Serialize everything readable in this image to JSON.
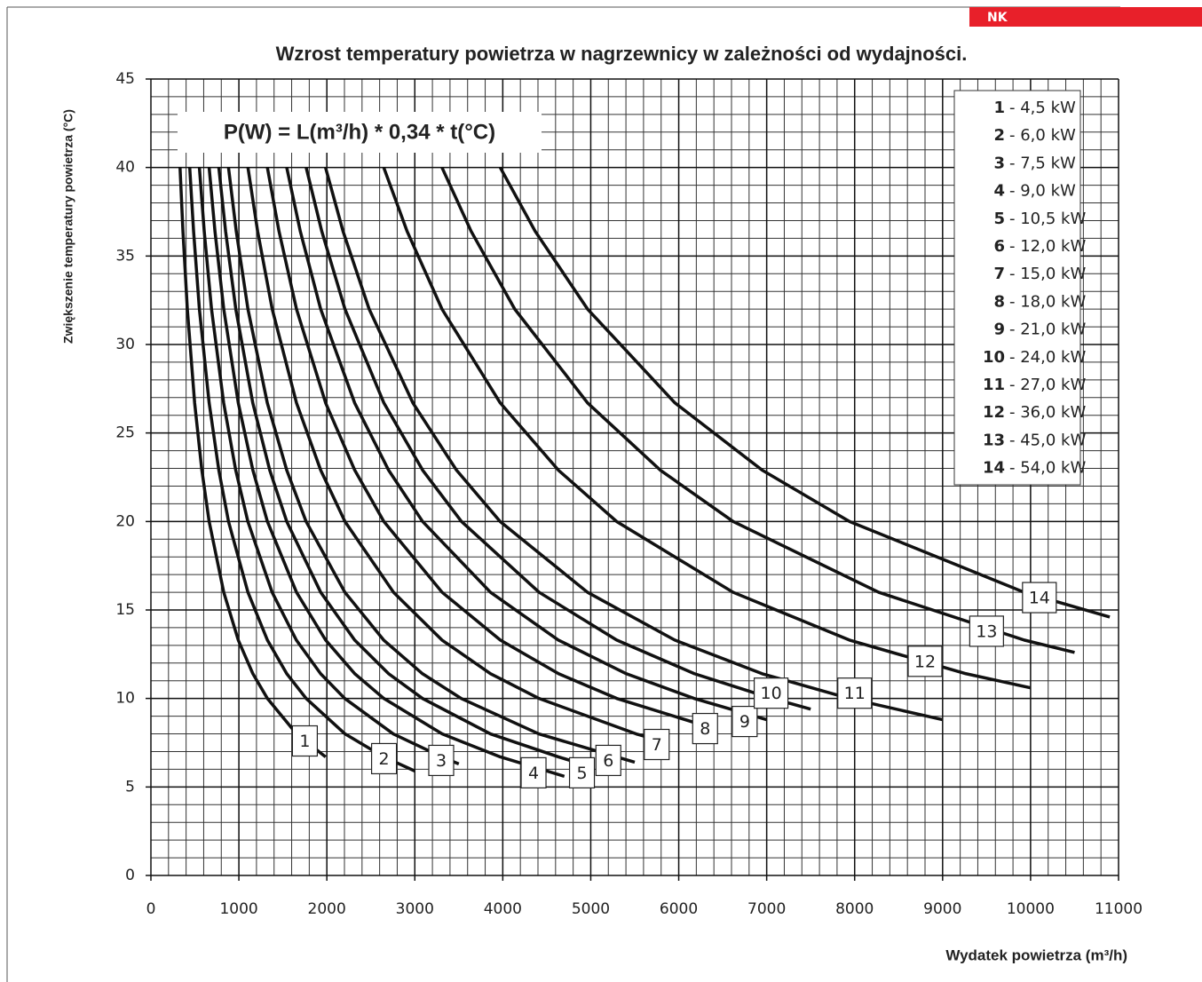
{
  "tag": "NK",
  "chart_data": {
    "type": "line",
    "title": "Wzrost temperatury powietrza w nagrzewnicy w zależności od wydajności.",
    "xlabel": "Wydatek powietrza (m³/h)",
    "ylabel": "Zwiększenie temperatury powietrza  (°C)",
    "formula": "P(W) = L(m³/h) * 0,34 * t(°C)",
    "xlim": [
      0,
      11000
    ],
    "xticks": [
      0,
      1000,
      2000,
      3000,
      4000,
      5000,
      6000,
      7000,
      8000,
      9000,
      10000,
      11000
    ],
    "ylim": [
      0,
      45
    ],
    "yticks": [
      0,
      5,
      10,
      15,
      20,
      25,
      30,
      35,
      40,
      45
    ],
    "grid": true,
    "minor_grid": {
      "x": 200,
      "y": 1
    },
    "color": "#111111",
    "series": [
      {
        "name": "1",
        "label": "- 4,5 kW",
        "label_x": 1750,
        "label_y": 7.6,
        "x": [
          331,
          364,
          414,
          497,
          579,
          662,
          828,
          993,
          1159,
          1324,
          1655,
          1986
        ],
        "values": [
          40,
          36.4,
          32,
          26.7,
          22.9,
          20,
          16,
          13.3,
          11.4,
          10,
          8,
          6.7
        ]
      },
      {
        "name": "2",
        "label": "- 6,0 kW",
        "label_x": 2650,
        "label_y": 6.6,
        "x": [
          441,
          485,
          551,
          662,
          772,
          882,
          1103,
          1324,
          1544,
          1765,
          2206,
          2647,
          3000
        ],
        "values": [
          40,
          36.4,
          32,
          26.7,
          22.9,
          20,
          16,
          13.3,
          11.4,
          10,
          8,
          6.7,
          5.9
        ]
      },
      {
        "name": "3",
        "label": "- 7,5 kW",
        "label_x": 3300,
        "label_y": 6.5,
        "x": [
          551,
          606,
          689,
          827,
          964,
          1102,
          1378,
          1653,
          1929,
          2204,
          2755,
          3306,
          3500
        ],
        "values": [
          40,
          36.4,
          32,
          26.7,
          22.9,
          20,
          16,
          13.3,
          11.4,
          10,
          8,
          6.7,
          6.3
        ]
      },
      {
        "name": "4",
        "label": "- 9,0 kW",
        "label_x": 4350,
        "label_y": 5.8,
        "x": [
          662,
          728,
          828,
          993,
          1159,
          1324,
          1655,
          1986,
          2317,
          2648,
          3310,
          3972,
          4700
        ],
        "values": [
          40,
          36.4,
          32,
          26.7,
          22.9,
          20,
          16,
          13.3,
          11.4,
          10,
          8,
          6.7,
          5.6
        ]
      },
      {
        "name": "5",
        "label": "- 10,5 kW",
        "label_x": 4900,
        "label_y": 5.8,
        "x": [
          772,
          849,
          965,
          1158,
          1351,
          1544,
          1930,
          2316,
          2702,
          3088,
          3860,
          4632,
          4900
        ],
        "values": [
          40,
          36.4,
          32,
          26.7,
          22.9,
          20,
          16,
          13.3,
          11.4,
          10,
          8,
          6.7,
          6.3
        ]
      },
      {
        "name": "6",
        "label": "- 12,0 kW",
        "label_x": 5200,
        "label_y": 6.5,
        "x": [
          882,
          970,
          1103,
          1323,
          1544,
          1764,
          2205,
          2646,
          3087,
          3528,
          4410,
          5292,
          5500
        ],
        "values": [
          40,
          36.4,
          32,
          26.7,
          22.9,
          20,
          16,
          13.3,
          11.4,
          10,
          8,
          6.7,
          6.4
        ]
      },
      {
        "name": "7",
        "label": "- 15,0 kW",
        "label_x": 5750,
        "label_y": 7.4,
        "x": [
          1103,
          1213,
          1379,
          1655,
          1930,
          2206,
          2758,
          3309,
          3861,
          4412,
          5515,
          5800
        ],
        "values": [
          40,
          36.4,
          32,
          26.7,
          22.9,
          20,
          16,
          13.3,
          11.4,
          10,
          8,
          7.6
        ]
      },
      {
        "name": "8",
        "label": "- 18,0 kW",
        "label_x": 6300,
        "label_y": 8.3,
        "x": [
          1324,
          1456,
          1655,
          1986,
          2317,
          2648,
          3310,
          3972,
          4634,
          5296,
          6400
        ],
        "values": [
          40,
          36.4,
          32,
          26.7,
          22.9,
          20,
          16,
          13.3,
          11.4,
          10,
          8.3
        ]
      },
      {
        "name": "9",
        "label": "- 21,0 kW",
        "label_x": 6750,
        "label_y": 8.7,
        "x": [
          1544,
          1698,
          1930,
          2316,
          2702,
          3088,
          3860,
          4632,
          5404,
          6176,
          7000
        ],
        "values": [
          40,
          36.4,
          32,
          26.7,
          22.9,
          20,
          16,
          13.3,
          11.4,
          10,
          8.8
        ]
      },
      {
        "name": "10",
        "label": "- 24,0 kW",
        "label_x": 7050,
        "label_y": 10.3,
        "x": [
          1765,
          1942,
          2206,
          2648,
          3089,
          3530,
          4413,
          5295,
          6178,
          7060,
          7500
        ],
        "values": [
          40,
          36.4,
          32,
          26.7,
          22.9,
          20,
          16,
          13.3,
          11.4,
          10,
          9.4
        ]
      },
      {
        "name": "11",
        "label": "- 27,0 kW",
        "label_x": 8000,
        "label_y": 10.3,
        "x": [
          1985,
          2184,
          2481,
          2978,
          3474,
          3970,
          4963,
          5955,
          6948,
          7940,
          9000
        ],
        "values": [
          40,
          36.4,
          32,
          26.7,
          22.9,
          20,
          16,
          13.3,
          11.4,
          10,
          8.8
        ]
      },
      {
        "name": "12",
        "label": "- 36,0 kW",
        "label_x": 8800,
        "label_y": 12.1,
        "x": [
          2647,
          2912,
          3309,
          3971,
          4632,
          5294,
          6618,
          7941,
          9265,
          10000
        ],
        "values": [
          40,
          36.4,
          32,
          26.7,
          22.9,
          20,
          16,
          13.3,
          11.4,
          10.6
        ]
      },
      {
        "name": "13",
        "label": "- 45,0 kW",
        "label_x": 9500,
        "label_y": 13.8,
        "x": [
          3309,
          3640,
          4136,
          4964,
          5791,
          6618,
          8273,
          9927,
          10500
        ],
        "values": [
          40,
          36.4,
          32,
          26.7,
          22.9,
          20,
          16,
          13.3,
          12.6
        ]
      },
      {
        "name": "14",
        "label": "- 54,0 kW",
        "label_x": 10100,
        "label_y": 15.7,
        "x": [
          3971,
          4368,
          4964,
          5957,
          6949,
          7942,
          9928,
          10900
        ],
        "values": [
          40,
          36.4,
          32,
          26.7,
          22.9,
          20,
          16,
          14.6
        ]
      }
    ]
  }
}
